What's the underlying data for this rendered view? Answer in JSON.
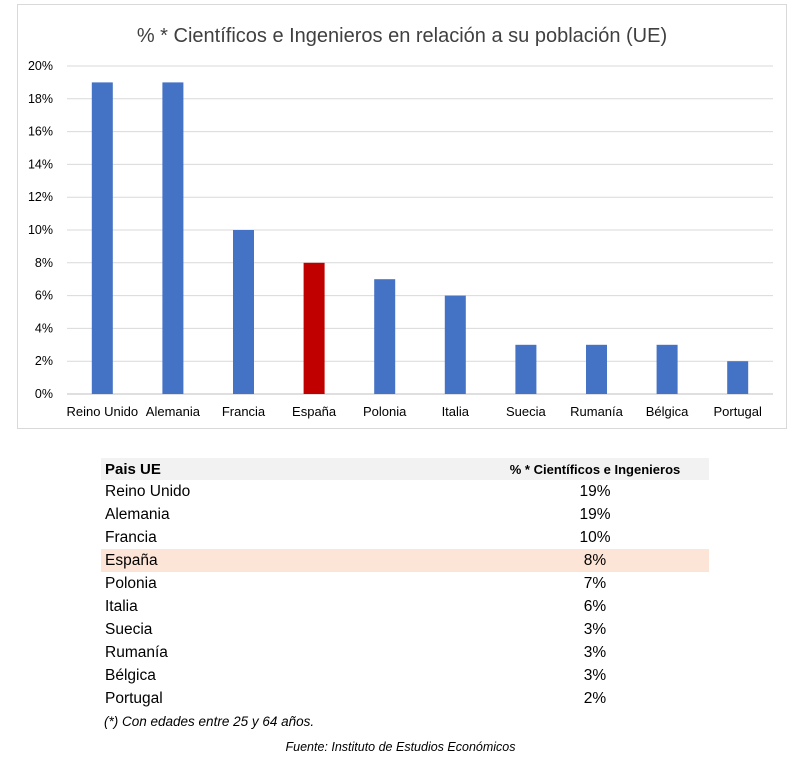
{
  "chart_data": {
    "type": "bar",
    "title": "% * Científicos e Ingenieros en relación a su población (UE)",
    "categories": [
      "Reino Unido",
      "Alemania",
      "Francia",
      "España",
      "Polonia",
      "Italia",
      "Suecia",
      "Rumanía",
      "Bélgica",
      "Portugal"
    ],
    "values": [
      19,
      19,
      10,
      8,
      7,
      6,
      3,
      3,
      3,
      2
    ],
    "y_ticks": [
      "0%",
      "2%",
      "4%",
      "6%",
      "8%",
      "10%",
      "12%",
      "14%",
      "16%",
      "18%",
      "20%"
    ],
    "ylim": [
      0,
      20
    ],
    "xlabel": "",
    "ylabel": "",
    "grid": true,
    "legend": "none",
    "colors": {
      "bar": "#4472c4",
      "highlight_bar": "#c00000",
      "highlight_category": "España"
    }
  },
  "table": {
    "headers": [
      "Pais UE",
      "% * Científicos e Ingenieros"
    ],
    "rows": [
      {
        "country": "Reino Unido",
        "value": "19%"
      },
      {
        "country": "Alemania",
        "value": "19%"
      },
      {
        "country": "Francia",
        "value": "10%"
      },
      {
        "country": "España",
        "value": "8%",
        "highlight": true
      },
      {
        "country": "Polonia",
        "value": "7%"
      },
      {
        "country": "Italia",
        "value": "6%"
      },
      {
        "country": "Suecia",
        "value": "3%"
      },
      {
        "country": "Rumanía",
        "value": "3%"
      },
      {
        "country": "Bélgica",
        "value": "3%"
      },
      {
        "country": "Portugal",
        "value": "2%"
      }
    ],
    "highlight_color": "#fce4d6",
    "header_bg": "#f2f2f2"
  },
  "footnote": "(*) Con edades   entre 25 y 64 años.",
  "source": "Fuente: Instituto de Estudios Económicos"
}
